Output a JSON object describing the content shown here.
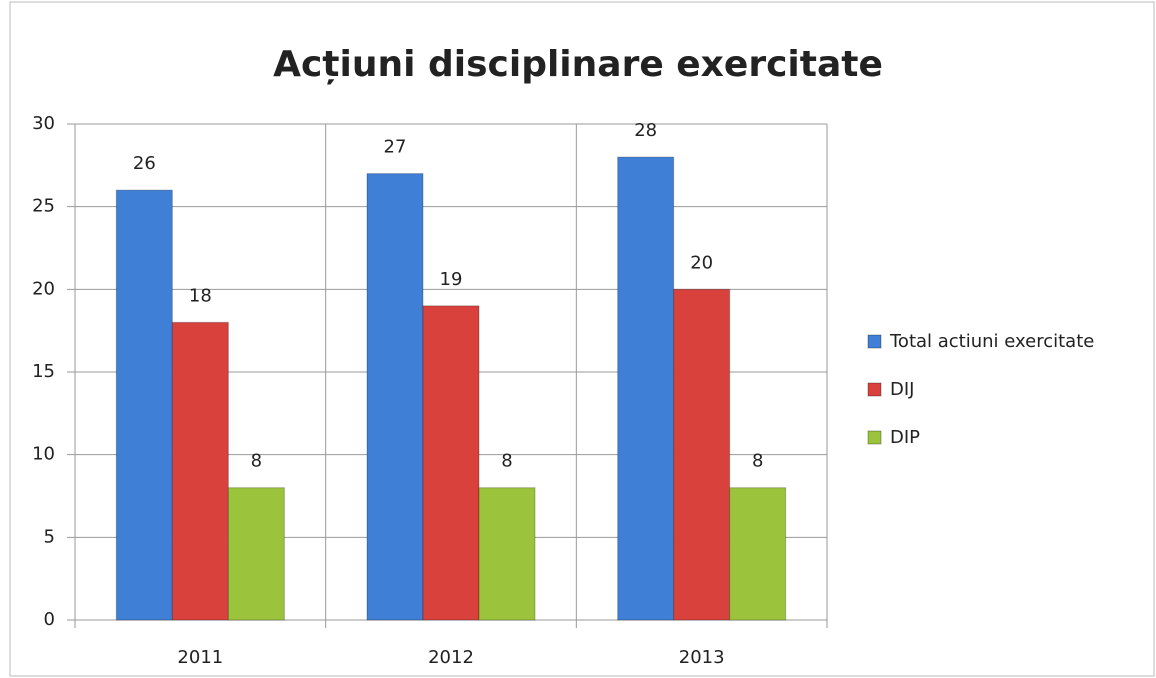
{
  "chart_data": {
    "type": "bar",
    "title": "Acțiuni disciplinare exercitate",
    "categories": [
      "2011",
      "2012",
      "2013"
    ],
    "series": [
      {
        "name": "Total actiuni exercitate",
        "color": "#3f7fd6",
        "values": [
          26,
          27,
          28
        ]
      },
      {
        "name": "DIJ",
        "color": "#d9413d",
        "values": [
          18,
          19,
          20
        ]
      },
      {
        "name": "DIP",
        "color": "#9bc43c",
        "values": [
          8,
          8,
          8
        ]
      }
    ],
    "ylim": [
      0,
      30
    ],
    "yticks": [
      0,
      5,
      10,
      15,
      20,
      25,
      30
    ],
    "grid": true,
    "legend": "right"
  }
}
